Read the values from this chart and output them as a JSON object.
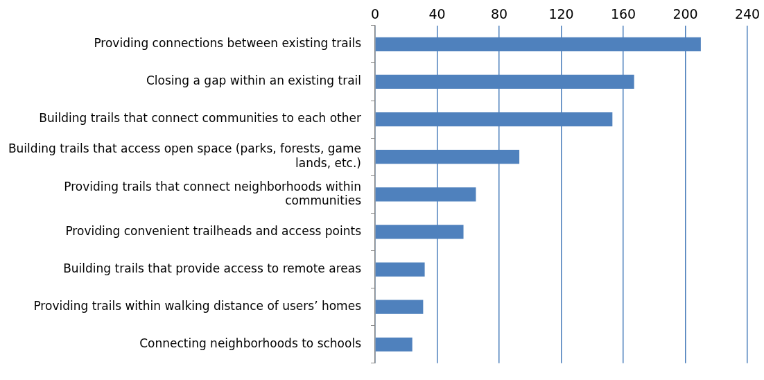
{
  "chart_data": {
    "type": "bar",
    "orientation": "horizontal",
    "categories": [
      "Providing connections between existing trails",
      "Closing a gap within an existing trail",
      "Building trails that connect communities to each other",
      "Building trails that access open space (parks, forests, game lands, etc.)",
      "Providing trails that connect neighborhoods within communities",
      "Providing convenient trailheads and access points",
      "Building trails that provide access to remote areas",
      "Providing trails within walking distance of users’ homes",
      "Connecting neighborhoods to schools"
    ],
    "values": [
      210,
      167,
      153,
      93,
      65,
      57,
      32,
      31,
      24
    ],
    "color": "#4f81bd",
    "xlim": [
      0,
      240
    ],
    "xticks": [
      0,
      40,
      80,
      120,
      160,
      200,
      240
    ],
    "grid": "x",
    "legend": false
  }
}
